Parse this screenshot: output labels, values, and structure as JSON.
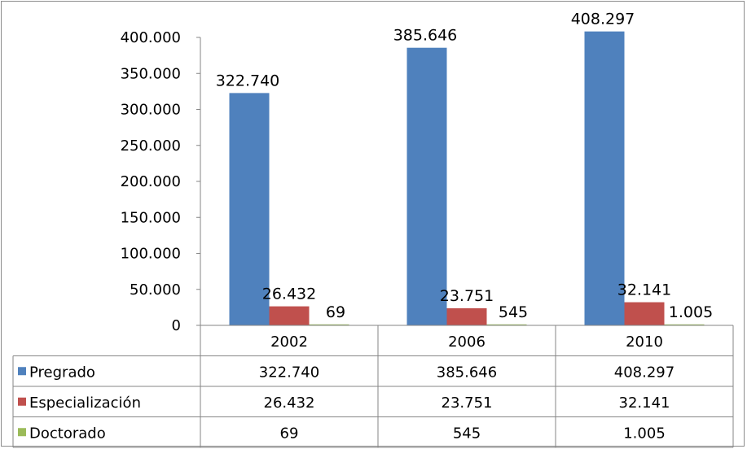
{
  "chart_data": {
    "type": "bar",
    "categories": [
      "2002",
      "2006",
      "2010"
    ],
    "series": [
      {
        "name": "Pregrado",
        "values": [
          322740,
          385646,
          408297
        ],
        "labels": [
          "322.740",
          "385.646",
          "408.297"
        ],
        "color": "#4f81bd"
      },
      {
        "name": "Especialización",
        "values": [
          26432,
          23751,
          32141
        ],
        "labels": [
          "26.432",
          "23.751",
          "32.141"
        ],
        "color": "#c0504d"
      },
      {
        "name": "Doctorado",
        "values": [
          69,
          545,
          1005
        ],
        "labels": [
          "69",
          "545",
          "1.005"
        ],
        "color": "#9bbb59"
      }
    ],
    "yticks": [
      "0",
      "50.000",
      "100.000",
      "150.000",
      "200.000",
      "250.000",
      "300.000",
      "350.000",
      "400.000"
    ],
    "ylim": [
      0,
      400000
    ],
    "grid": false,
    "legend": "data-table"
  }
}
